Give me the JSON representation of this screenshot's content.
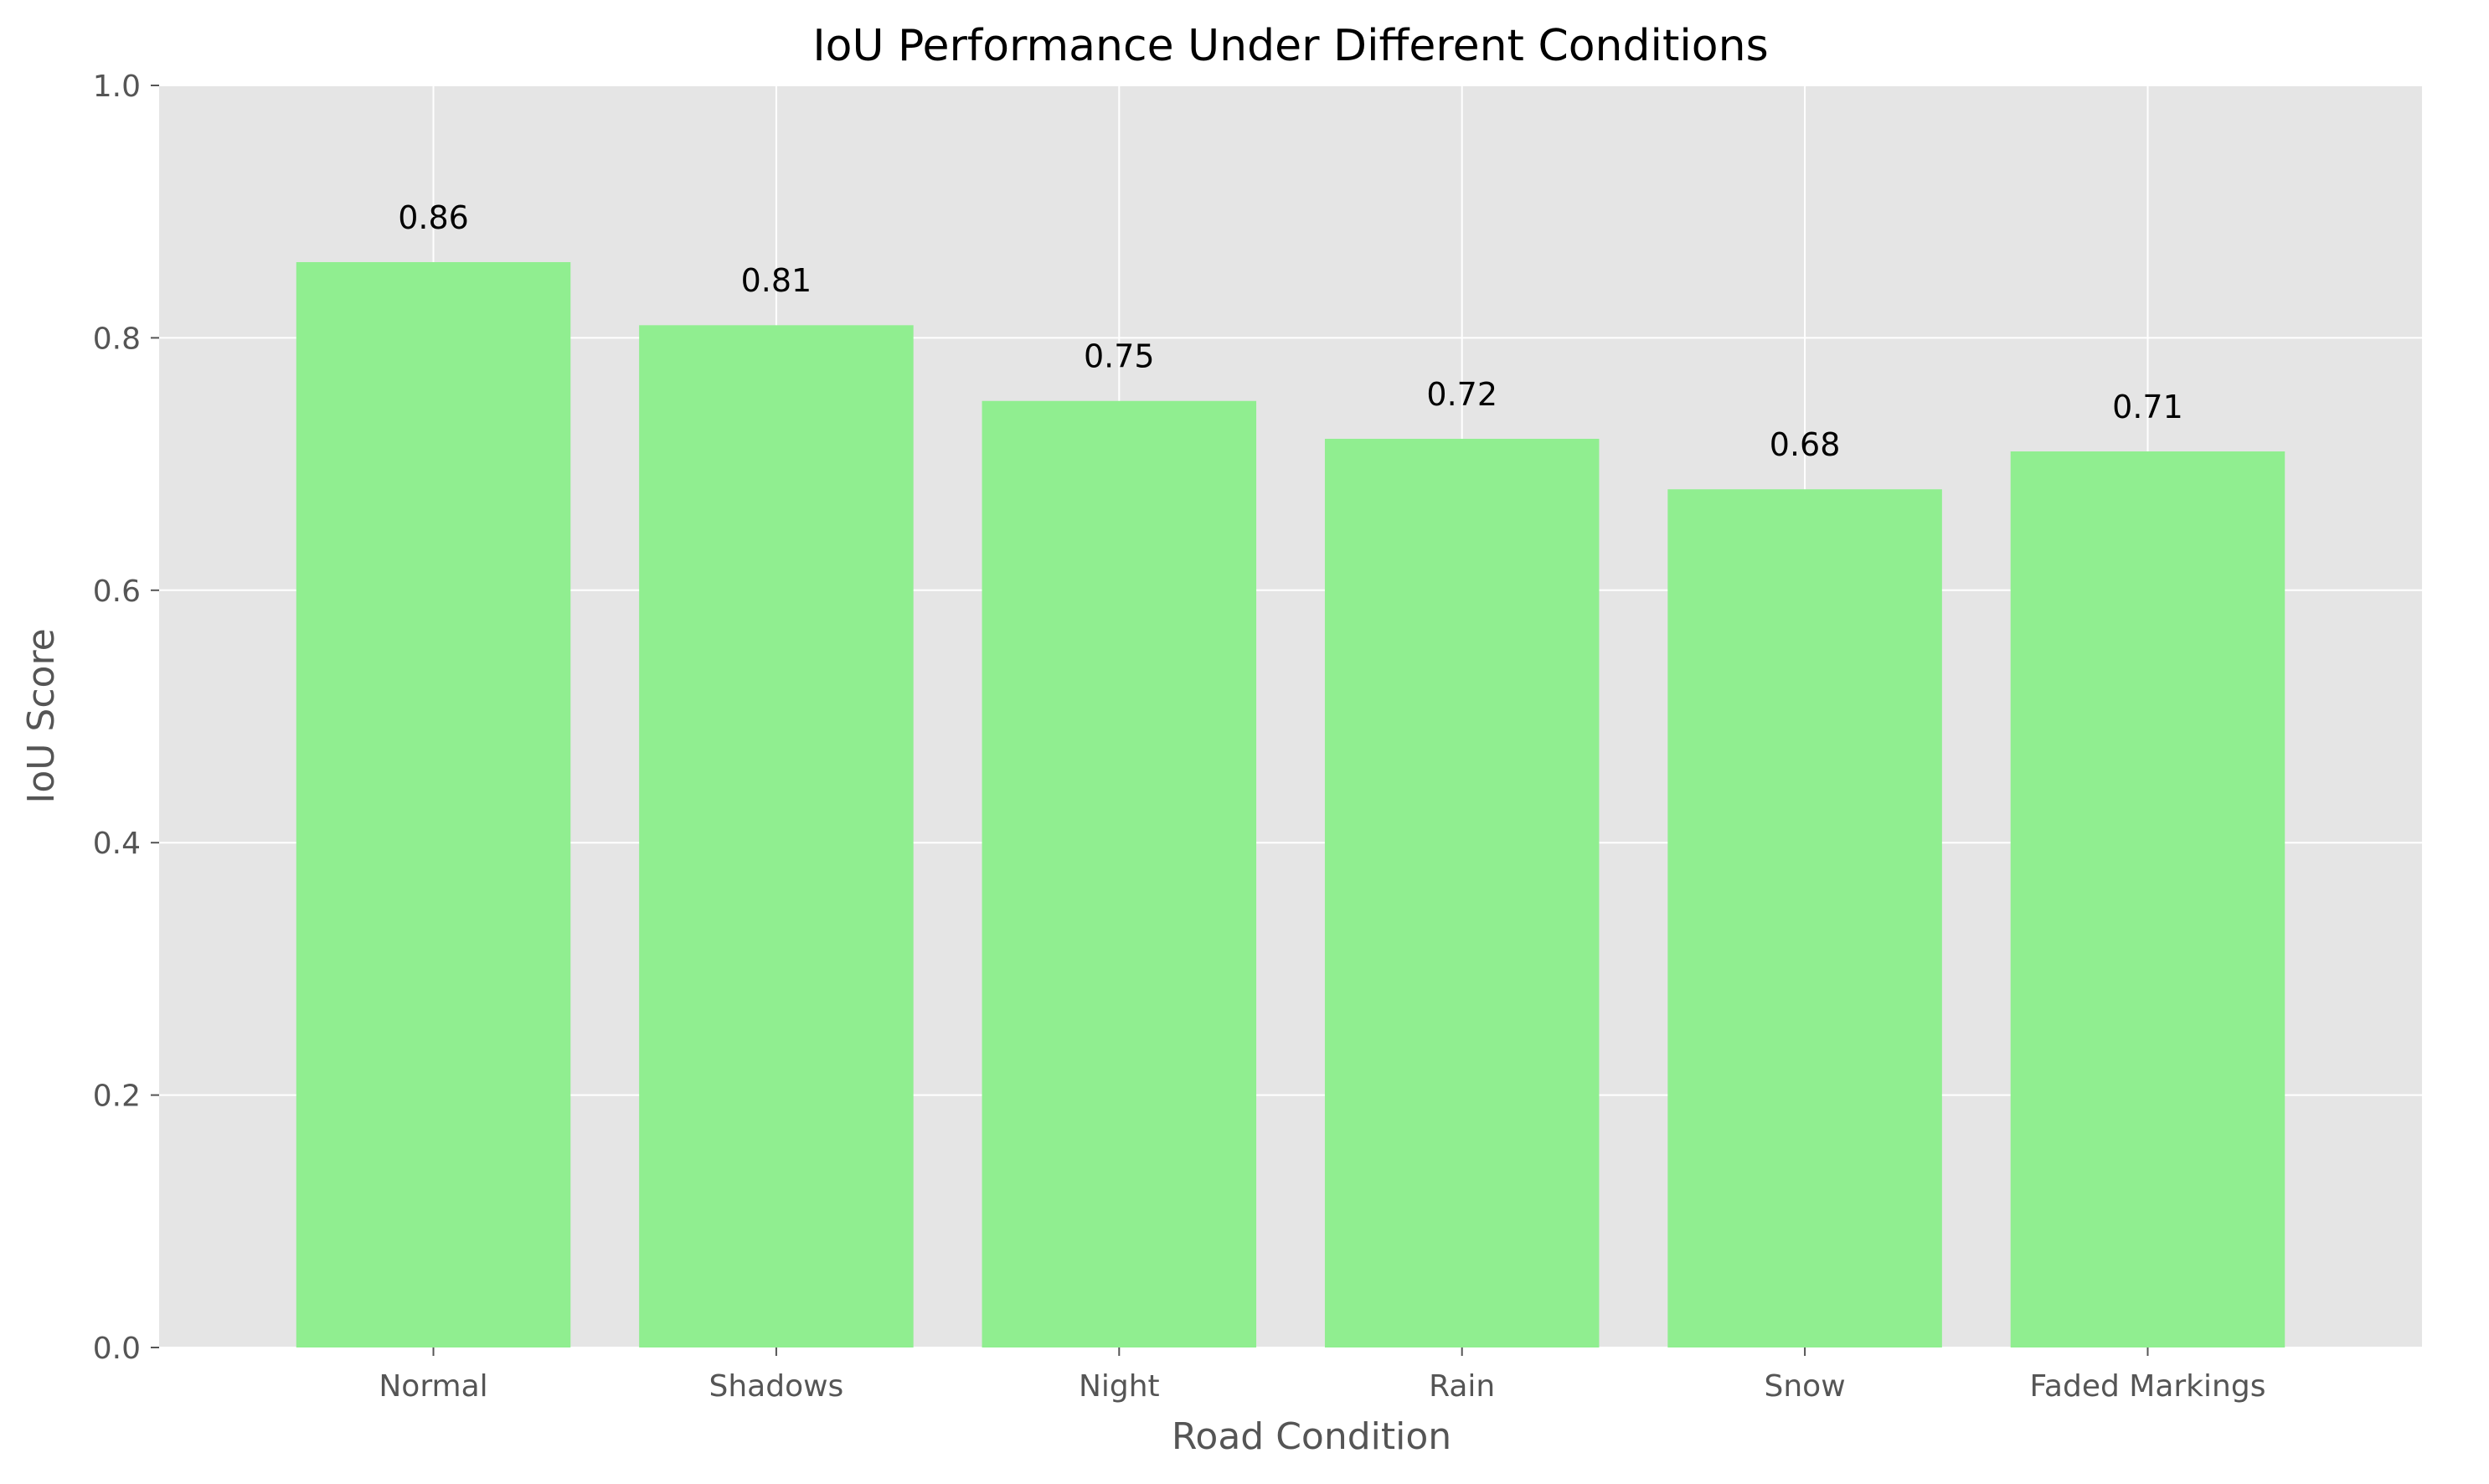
{
  "chart_data": {
    "type": "bar",
    "title": "IoU Performance Under Different Conditions",
    "xlabel": "Road Condition",
    "ylabel": "IoU Score",
    "categories": [
      "Normal",
      "Shadows",
      "Night",
      "Rain",
      "Snow",
      "Faded Markings"
    ],
    "values": [
      0.86,
      0.81,
      0.75,
      0.72,
      0.68,
      0.71
    ],
    "value_labels": [
      "0.86",
      "0.81",
      "0.75",
      "0.72",
      "0.68",
      "0.71"
    ],
    "ylim": [
      0,
      1.0
    ],
    "yticks": [
      0.0,
      0.2,
      0.4,
      0.6,
      0.8,
      1.0
    ],
    "ytick_labels": [
      "0.0",
      "0.2",
      "0.4",
      "0.6",
      "0.8",
      "1.0"
    ],
    "grid": true,
    "colors": {
      "bar": "#90ee90",
      "plot_background": "#e5e5e5",
      "grid": "#ffffff"
    }
  }
}
